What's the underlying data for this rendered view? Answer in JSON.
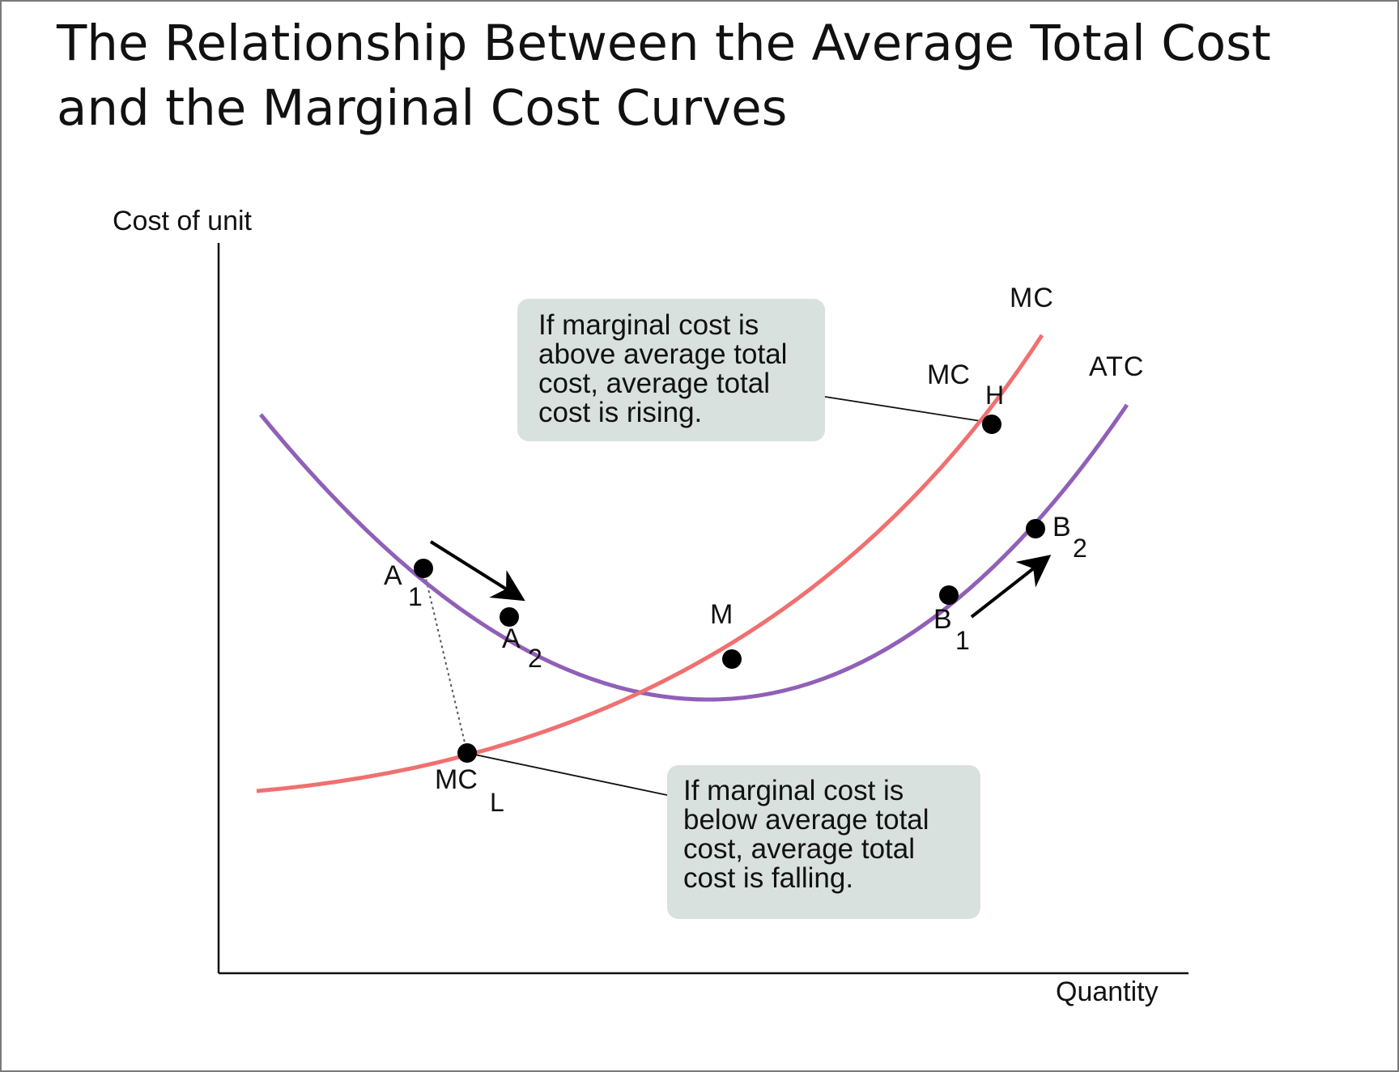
{
  "title": "The Relationship Between the Average Total Cost and the Marginal Cost Curves",
  "axes": {
    "y_label": "Cost of unit",
    "x_label": "Quantity"
  },
  "curves": {
    "mc": {
      "label": "MC",
      "color": "#f07070"
    },
    "atc": {
      "label": "ATC",
      "color": "#9060b8"
    }
  },
  "points": {
    "a1": {
      "main": "A",
      "sub": "1"
    },
    "a2": {
      "main": "A",
      "sub": "2"
    },
    "m": {
      "main": "M"
    },
    "b1": {
      "main": "B",
      "sub": "1"
    },
    "b2": {
      "main": "B",
      "sub": "2"
    },
    "mc_h": {
      "main": "MC",
      "sub": "H"
    },
    "mc_l": {
      "main": "MC",
      "sub": "L"
    }
  },
  "callouts": {
    "above": {
      "lines": [
        "If marginal cost is",
        "above average total",
        "cost, average total",
        "cost is rising."
      ]
    },
    "below": {
      "lines": [
        "If marginal cost is",
        "below average total",
        "cost, average total",
        "cost is falling."
      ]
    }
  },
  "colors": {
    "callout_bg": "#d9e1df",
    "axis": "#111111",
    "point": "#000000"
  }
}
